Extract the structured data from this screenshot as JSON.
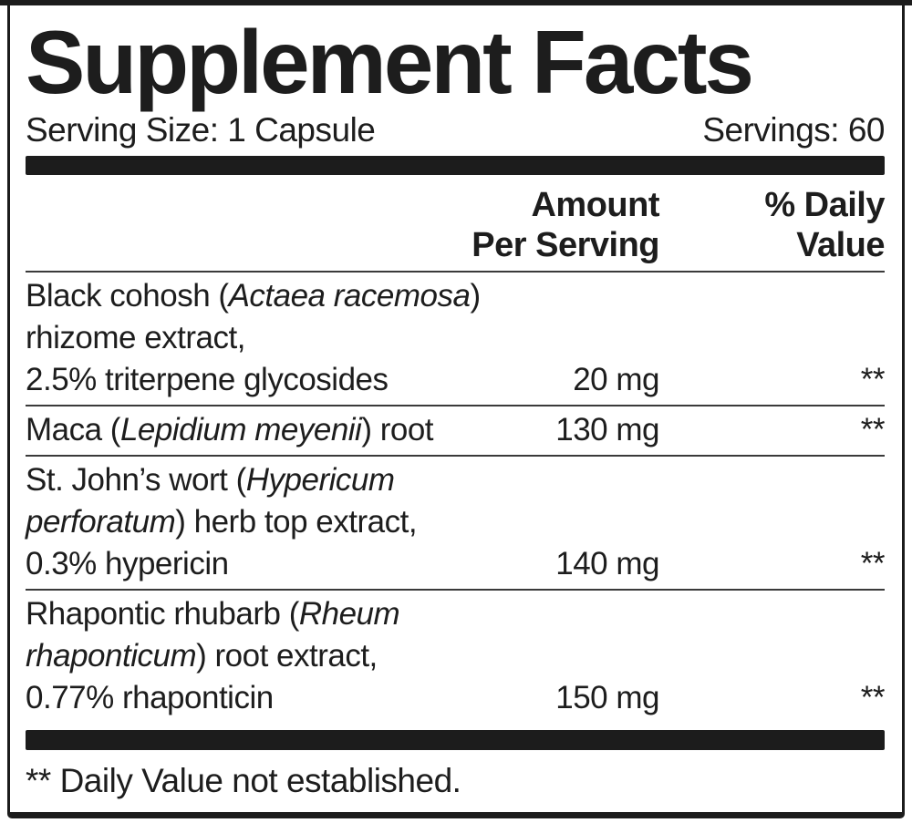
{
  "panel": {
    "title": "Supplement Facts",
    "serving_size": "Serving Size: 1 Capsule",
    "servings": "Servings: 60",
    "footnote": "** Daily Value not established.",
    "colors": {
      "ink": "#1d1d1d",
      "bar": "#1c1c1c",
      "rule": "#3a3a3a",
      "background": "#ffffff"
    }
  },
  "table": {
    "columns": {
      "amount": {
        "line1": "Amount",
        "line2": "Per Serving"
      },
      "daily_value": {
        "line1": "% Daily",
        "line2": "Value"
      }
    },
    "rows": [
      {
        "name_lines": [
          [
            {
              "text": "Black cohosh (",
              "italic": false
            },
            {
              "text": "Actaea racemosa",
              "italic": true
            },
            {
              "text": ")",
              "italic": false
            }
          ],
          [
            {
              "text": "rhizome extract,",
              "italic": false
            }
          ],
          [
            {
              "text": "2.5% triterpene glycosides",
              "italic": false
            }
          ]
        ],
        "amount": "20 mg",
        "daily_value": "**"
      },
      {
        "name_lines": [
          [
            {
              "text": "Maca (",
              "italic": false
            },
            {
              "text": "Lepidium meyenii",
              "italic": true
            },
            {
              "text": ") root",
              "italic": false
            }
          ]
        ],
        "amount": "130 mg",
        "daily_value": "**"
      },
      {
        "name_lines": [
          [
            {
              "text": "St. John’s wort (",
              "italic": false
            },
            {
              "text": "Hypericum",
              "italic": true
            }
          ],
          [
            {
              "text": "perforatum",
              "italic": true
            },
            {
              "text": ") herb top extract,",
              "italic": false
            }
          ],
          [
            {
              "text": "0.3% hypericin",
              "italic": false
            }
          ]
        ],
        "amount": "140 mg",
        "daily_value": "**"
      },
      {
        "name_lines": [
          [
            {
              "text": "Rhapontic rhubarb (",
              "italic": false
            },
            {
              "text": "Rheum",
              "italic": true
            }
          ],
          [
            {
              "text": "rhaponticum",
              "italic": true
            },
            {
              "text": ") root extract,",
              "italic": false
            }
          ],
          [
            {
              "text": "0.77% rhaponticin",
              "italic": false
            }
          ]
        ],
        "amount": "150 mg",
        "daily_value": "**"
      }
    ]
  }
}
